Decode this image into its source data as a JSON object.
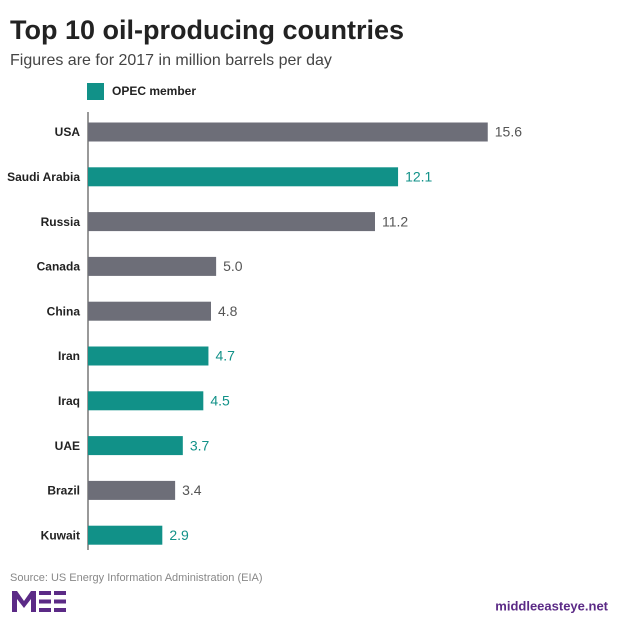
{
  "chart_data": {
    "type": "barh",
    "title": "Top 10 oil-producing countries",
    "subtitle": "Figures are for 2017 in million barrels per day",
    "legend_label": "OPEC member",
    "categories": [
      "USA",
      "Saudi Arabia",
      "Russia",
      "Canada",
      "China",
      "Iran",
      "Iraq",
      "UAE",
      "Brazil",
      "Kuwait"
    ],
    "values": [
      15.6,
      12.1,
      11.2,
      5.0,
      4.8,
      4.7,
      4.5,
      3.7,
      3.4,
      2.9
    ],
    "value_labels": [
      "15.6",
      "12.1",
      "11.2",
      "5.0",
      "4.8",
      "4.7",
      "4.5",
      "3.7",
      "3.4",
      "2.9"
    ],
    "opec": [
      false,
      true,
      false,
      false,
      false,
      true,
      true,
      true,
      false,
      true
    ],
    "color": "#6d6e78",
    "opec_color": "#119188",
    "xlim": [
      0,
      16
    ],
    "source": "Source: US Energy Information Administration (EIA)",
    "site": "middleeasteye.net"
  }
}
